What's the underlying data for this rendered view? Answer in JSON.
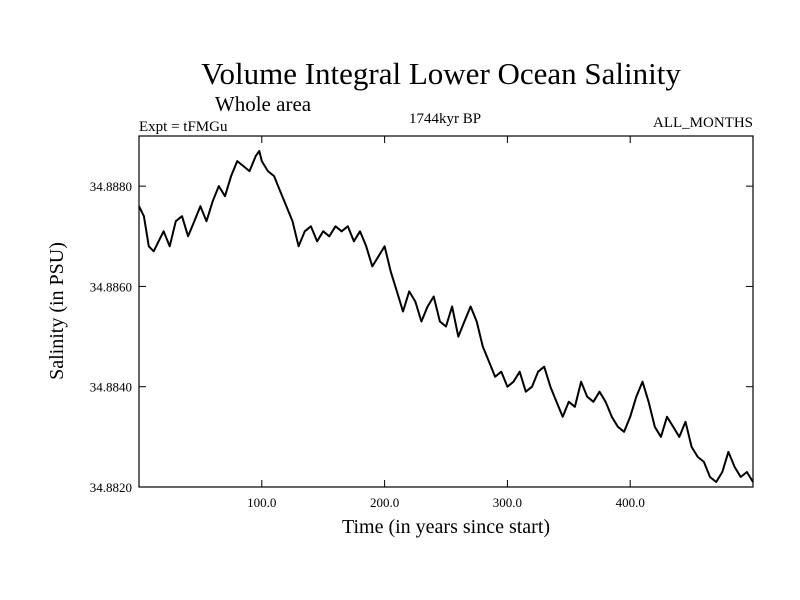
{
  "chart_data": {
    "type": "line",
    "title": "Volume Integral Lower Ocean Salinity",
    "subtitle": "Whole area",
    "experiment_label": "Expt = tFMGu",
    "period_label": "1744kyr BP",
    "months_label": "ALL_MONTHS",
    "xlabel": "Time (in years since start)",
    "ylabel": "Salinity (in PSU)",
    "xlim": [
      0,
      500
    ],
    "ylim": [
      34.882,
      34.889
    ],
    "x_ticks": [
      100,
      200,
      300,
      400
    ],
    "x_tick_labels": [
      "100.0",
      "200.0",
      "300.0",
      "400.0"
    ],
    "y_ticks": [
      34.882,
      34.884,
      34.886,
      34.888
    ],
    "y_tick_labels": [
      "34.8820",
      "34.8840",
      "34.8860",
      "34.8880"
    ],
    "grid": false,
    "series": [
      {
        "name": "Salinity",
        "color": "#000000",
        "x": [
          0,
          4,
          8,
          12,
          16,
          20,
          25,
          30,
          35,
          40,
          45,
          50,
          55,
          60,
          65,
          70,
          75,
          80,
          85,
          90,
          95,
          98,
          100,
          105,
          110,
          115,
          120,
          125,
          130,
          135,
          140,
          145,
          150,
          155,
          160,
          165,
          170,
          175,
          180,
          185,
          190,
          195,
          200,
          205,
          210,
          215,
          220,
          225,
          230,
          235,
          240,
          245,
          250,
          255,
          260,
          265,
          270,
          275,
          280,
          285,
          290,
          295,
          300,
          305,
          310,
          315,
          320,
          325,
          330,
          335,
          340,
          345,
          350,
          355,
          360,
          365,
          370,
          375,
          380,
          385,
          390,
          395,
          400,
          405,
          410,
          415,
          420,
          425,
          430,
          435,
          440,
          445,
          450,
          455,
          460,
          465,
          470,
          475,
          480,
          485,
          490,
          495,
          500
        ],
        "y": [
          34.8876,
          34.8874,
          34.8868,
          34.8867,
          34.8869,
          34.8871,
          34.8868,
          34.8873,
          34.8874,
          34.887,
          34.8873,
          34.8876,
          34.8873,
          34.8877,
          34.888,
          34.8878,
          34.8882,
          34.8885,
          34.8884,
          34.8883,
          34.8886,
          34.8887,
          34.8885,
          34.8883,
          34.8882,
          34.8879,
          34.8876,
          34.8873,
          34.8868,
          34.8871,
          34.8872,
          34.8869,
          34.8871,
          34.887,
          34.8872,
          34.8871,
          34.8872,
          34.8869,
          34.8871,
          34.8868,
          34.8864,
          34.8866,
          34.8868,
          34.8863,
          34.8859,
          34.8855,
          34.8859,
          34.8857,
          34.8853,
          34.8856,
          34.8858,
          34.8853,
          34.8852,
          34.8856,
          34.885,
          34.8853,
          34.8856,
          34.8853,
          34.8848,
          34.8845,
          34.8842,
          34.8843,
          34.884,
          34.8841,
          34.8843,
          34.8839,
          34.884,
          34.8843,
          34.8844,
          34.884,
          34.8837,
          34.8834,
          34.8837,
          34.8836,
          34.8841,
          34.8838,
          34.8837,
          34.8839,
          34.8837,
          34.8834,
          34.8832,
          34.8831,
          34.8834,
          34.8838,
          34.8841,
          34.8837,
          34.8832,
          34.883,
          34.8834,
          34.8832,
          34.883,
          34.8833,
          34.8828,
          34.8826,
          34.8825,
          34.8822,
          34.8821,
          34.8823,
          34.8827,
          34.8824,
          34.8822,
          34.8823,
          34.8821
        ]
      }
    ]
  }
}
